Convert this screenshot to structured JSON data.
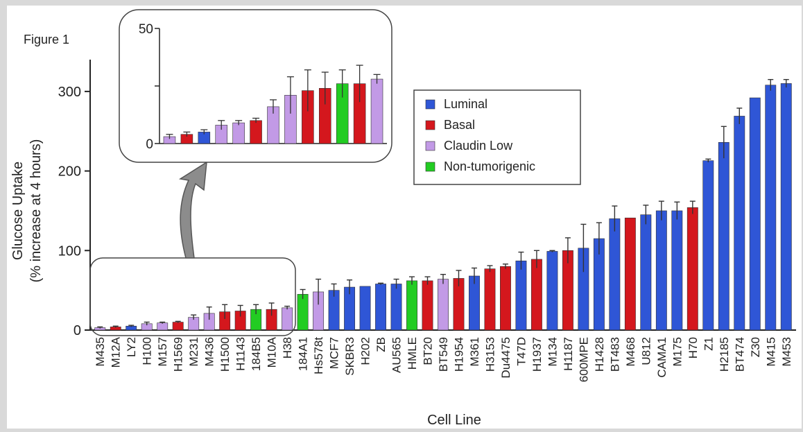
{
  "figure_label": "Figure 1",
  "chart_data": [
    {
      "type": "bar",
      "title": "",
      "xlabel": "Cell Line",
      "ylabel_line1": "Glucose Uptake",
      "ylabel_line2": "(% increase at 4 hours)",
      "ylim": [
        0,
        340
      ],
      "yticks": [
        0,
        100,
        200,
        300
      ],
      "legend_position": "top-center",
      "grid": false,
      "groups": [
        {
          "name": "Luminal",
          "color": "#2f56d6"
        },
        {
          "name": "Basal",
          "color": "#d4171d"
        },
        {
          "name": "Claudin Low",
          "color": "#c29ae6"
        },
        {
          "name": "Non-tumorigenic",
          "color": "#22cc22"
        }
      ],
      "categories": [
        "M435",
        "M12A",
        "LY2",
        "H100",
        "M157",
        "H1569",
        "M231",
        "M436",
        "H1500",
        "H1143",
        "184B5",
        "M10A",
        "H38",
        "184A1",
        "Hs578t",
        "MCF7",
        "SKBR3",
        "H202",
        "ZB",
        "AU565",
        "HMLE",
        "BT20",
        "BT549",
        "H1954",
        "M361",
        "H3153",
        "Du4475",
        "T47D",
        "H1937",
        "M134",
        "H1187",
        "600MPE",
        "H1428",
        "BT483",
        "M468",
        "U812",
        "CAMA1",
        "M175",
        "H70",
        "Z1",
        "H2185",
        "BT474",
        "Z30",
        "M415",
        "M453"
      ],
      "values": [
        3,
        4,
        5,
        8,
        9,
        10,
        16,
        21,
        23,
        24,
        26,
        26,
        28,
        45,
        48,
        50,
        54,
        55,
        58,
        58,
        62,
        62,
        64,
        65,
        68,
        77,
        80,
        87,
        89,
        99,
        100,
        103,
        115,
        140,
        141,
        145,
        150,
        150,
        154,
        213,
        236,
        269,
        292,
        308,
        310
      ],
      "errors": [
        1,
        1,
        1,
        2,
        1,
        1,
        3,
        8,
        9,
        7,
        6,
        8,
        2,
        6,
        16,
        8,
        9,
        0,
        1,
        6,
        5,
        5,
        6,
        10,
        10,
        4,
        3,
        11,
        11,
        1,
        16,
        30,
        20,
        16,
        0,
        12,
        12,
        11,
        8,
        2,
        20,
        10,
        0,
        7,
        5
      ],
      "group_index": [
        2,
        1,
        0,
        2,
        2,
        1,
        2,
        2,
        1,
        1,
        3,
        1,
        2,
        3,
        2,
        0,
        0,
        0,
        0,
        0,
        3,
        1,
        2,
        1,
        0,
        1,
        1,
        0,
        1,
        0,
        1,
        0,
        0,
        0,
        1,
        0,
        0,
        0,
        1,
        0,
        0,
        0,
        0,
        0,
        0
      ]
    },
    {
      "type": "bar",
      "title": "",
      "ylim": [
        0,
        50
      ],
      "yticks": [
        0,
        50
      ],
      "categories": [
        "M435",
        "M12A",
        "LY2",
        "H100",
        "M157",
        "H1569",
        "M231",
        "M436",
        "H1500",
        "H1143",
        "184B5",
        "M10A",
        "H38"
      ],
      "values": [
        3,
        4,
        5,
        8,
        9,
        10,
        16,
        21,
        23,
        24,
        26,
        26,
        28
      ],
      "errors": [
        1,
        1,
        1,
        2,
        1,
        1,
        3,
        8,
        9,
        7,
        6,
        8,
        2
      ],
      "group_index": [
        2,
        1,
        0,
        2,
        2,
        1,
        2,
        2,
        1,
        1,
        3,
        1,
        2
      ]
    }
  ]
}
